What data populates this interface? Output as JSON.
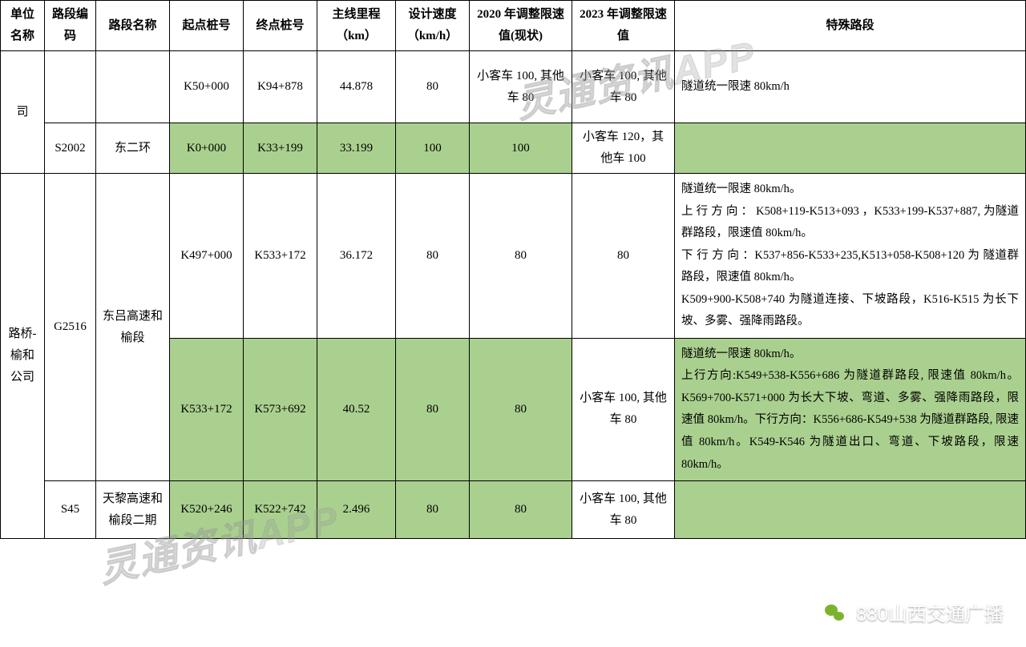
{
  "colors": {
    "green_row": "#aad08f",
    "border": "#000000",
    "bg": "#ffffff",
    "watermark": "rgba(150,150,150,0.28)",
    "footer_text": "#ffffff",
    "wechat_green": "#7bb32e"
  },
  "headers": {
    "unit": "单位名称",
    "code": "路段编码",
    "name": "路段名称",
    "start": "起点桩号",
    "end": "终点桩号",
    "length": "主线里程（km）",
    "design_speed": "设计速度（km/h）",
    "limit2020": "2020 年调整限速值(现状)",
    "limit2023": "2023 年调整限速值",
    "special": "特殊路段"
  },
  "rows": [
    {
      "unit": "司",
      "code": "",
      "name": "",
      "start": "K50+000",
      "end": "K94+878",
      "length": "44.878",
      "design_speed": "80",
      "limit2020": "小客车 100, 其他车 80",
      "limit2023": "小客车 100, 其他车 80",
      "special": "隧道统一限速 80km/h",
      "class": "white"
    },
    {
      "code": "S2002",
      "name": "东二环",
      "start": "K0+000",
      "end": "K33+199",
      "length": "33.199",
      "design_speed": "100",
      "limit2020": "100",
      "limit2023": "小客车 120，其他车 100",
      "special": "",
      "class": "green"
    },
    {
      "unit": "路桥-榆和公司",
      "code": "G2516",
      "name": "东吕高速和榆段",
      "start": "K497+000",
      "end": "K533+172",
      "length": "36.172",
      "design_speed": "80",
      "limit2020": "80",
      "limit2023": "80",
      "special": "隧道统一限速 80km/h。\n上 行 方 向 ： K508+119-K513+093 ，K533+199-K537+887, 为隧道群路段，限速值 80km/h。\n下 行 方 向 ：K537+856-K533+235,K513+058-K508+120 为 隧道群路段，限速值 80km/h。\nK509+900-K508+740 为隧道连接、下坡路段，K516-K515 为长下坡、多雾、强降雨路段。",
      "class": "white"
    },
    {
      "start": "K533+172",
      "end": "K573+692",
      "length": "40.52",
      "design_speed": "80",
      "limit2020": "80",
      "limit2023": "小客车 100, 其他车 80",
      "special": "隧道统一限速 80km/h。\n上行方向:K549+538-K556+686 为隧道群路段, 限速值 80km/h。K569+700-K571+000 为长大下坡、弯道、多雾、强降雨路段，限速值 80km/h。下行方向：K556+686-K549+538 为隧道群路段, 限速值 80km/h。K549-K546 为隧道出口、弯道、下坡路段，限速 80km/h。",
      "class": "green"
    },
    {
      "code": "S45",
      "name": "天黎高速和榆段二期",
      "start": "K520+246",
      "end": "K522+742",
      "length": "2.496",
      "design_speed": "80",
      "limit2020": "80",
      "limit2023": "小客车 100, 其他车 80",
      "special": "",
      "class": "green"
    }
  ],
  "watermark_text": "灵通资讯APP",
  "footer": "880山西交通广播"
}
